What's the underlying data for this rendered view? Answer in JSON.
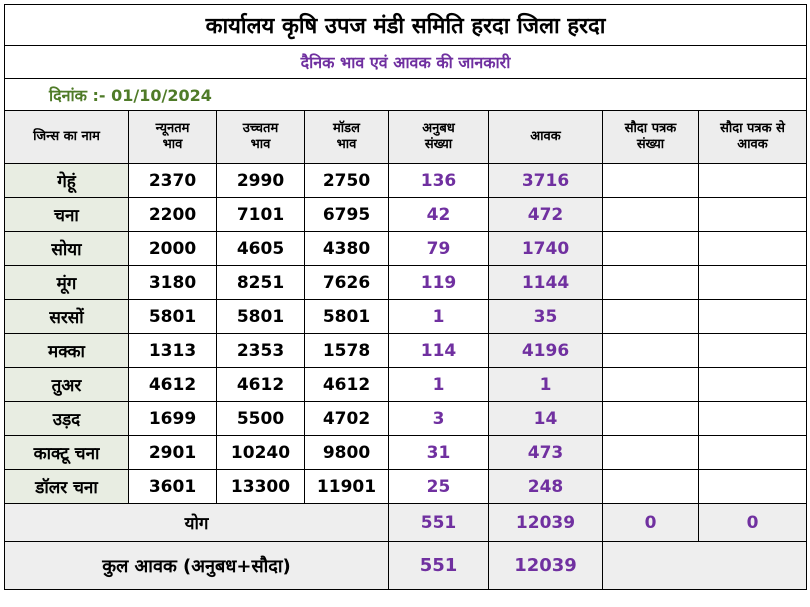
{
  "title": "कार्यालय कृषि उपज मंडी समिति हरदा जिला हरदा",
  "subtitle": "दैनिक भाव एवं आवक की जानकारी",
  "date_line": "दिनांक :- 01/10/2024",
  "headers": {
    "commodity": "जिन्स का नाम",
    "min_price": [
      "न्यूनतम",
      "भाव"
    ],
    "max_price": [
      "उच्चतम",
      "भाव"
    ],
    "model_price": [
      "मॉडल",
      "भाव"
    ],
    "anubandh_count": [
      "अनुबध",
      "संख्या"
    ],
    "aavak": "आवक",
    "sauda_count": [
      "सौदा पत्रक",
      "संख्या"
    ],
    "sauda_aavak": [
      "सौदा पत्रक से",
      "आवक"
    ]
  },
  "rows": [
    {
      "name": "गेहूं",
      "min": "2370",
      "max": "2990",
      "model": "2750",
      "anubandh": "136",
      "aavak": "3716",
      "sauda_count": "",
      "sauda_aavak": ""
    },
    {
      "name": "चना",
      "min": "2200",
      "max": "7101",
      "model": "6795",
      "anubandh": "42",
      "aavak": "472",
      "sauda_count": "",
      "sauda_aavak": ""
    },
    {
      "name": "सोया",
      "min": "2000",
      "max": "4605",
      "model": "4380",
      "anubandh": "79",
      "aavak": "1740",
      "sauda_count": "",
      "sauda_aavak": ""
    },
    {
      "name": "मूंग",
      "min": "3180",
      "max": "8251",
      "model": "7626",
      "anubandh": "119",
      "aavak": "1144",
      "sauda_count": "",
      "sauda_aavak": ""
    },
    {
      "name": "सरसों",
      "min": "5801",
      "max": "5801",
      "model": "5801",
      "anubandh": "1",
      "aavak": "35",
      "sauda_count": "",
      "sauda_aavak": ""
    },
    {
      "name": "मक्का",
      "min": "1313",
      "max": "2353",
      "model": "1578",
      "anubandh": "114",
      "aavak": "4196",
      "sauda_count": "",
      "sauda_aavak": ""
    },
    {
      "name": "तुअर",
      "min": "4612",
      "max": "4612",
      "model": "4612",
      "anubandh": "1",
      "aavak": "1",
      "sauda_count": "",
      "sauda_aavak": ""
    },
    {
      "name": "उड़द",
      "min": "1699",
      "max": "5500",
      "model": "4702",
      "anubandh": "3",
      "aavak": "14",
      "sauda_count": "",
      "sauda_aavak": ""
    },
    {
      "name": "काक्टू चना",
      "min": "2901",
      "max": "10240",
      "model": "9800",
      "anubandh": "31",
      "aavak": "473",
      "sauda_count": "",
      "sauda_aavak": ""
    },
    {
      "name": "डॉलर चना",
      "min": "3601",
      "max": "13300",
      "model": "11901",
      "anubandh": "25",
      "aavak": "248",
      "sauda_count": "",
      "sauda_aavak": ""
    }
  ],
  "total": {
    "label": "योग",
    "anubandh": "551",
    "aavak": "12039",
    "sauda_count": "0",
    "sauda_aavak": "0"
  },
  "grand_total": {
    "label": "कुल आवक (अनुबध+सौदा)",
    "anubandh": "551",
    "aavak": "12039"
  },
  "colors": {
    "purple": "#7030a0",
    "green": "#4f7b28",
    "name_bg": "#e8ede2",
    "gray_bg": "#eeeeee"
  }
}
